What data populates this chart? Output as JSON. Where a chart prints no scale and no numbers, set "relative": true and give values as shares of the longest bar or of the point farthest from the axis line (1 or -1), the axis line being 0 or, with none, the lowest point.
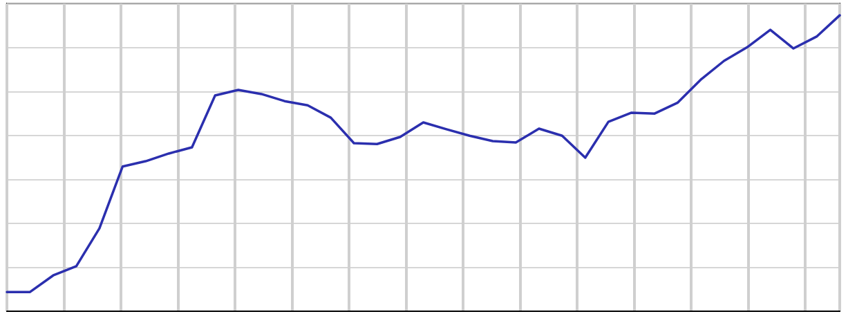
{
  "chart_data": {
    "type": "line",
    "relative": true,
    "grid": true,
    "marker": "none",
    "line_style": "solid",
    "categories": [
      null,
      null,
      null,
      null,
      null,
      null,
      null,
      null,
      null,
      null,
      null,
      null,
      null,
      null,
      null,
      null,
      null,
      null,
      null,
      null,
      null,
      null,
      null,
      null,
      null,
      null,
      null,
      null,
      null,
      null,
      null,
      null,
      null,
      null,
      null,
      null,
      null
    ],
    "series": [
      {
        "color": "#2b2fae",
        "values": [
          0.065,
          0.065,
          0.121,
          0.152,
          0.28,
          0.489,
          0.507,
          0.533,
          0.554,
          0.729,
          0.748,
          0.734,
          0.71,
          0.696,
          0.654,
          0.568,
          0.565,
          0.589,
          0.638,
          0.615,
          0.593,
          0.575,
          0.57,
          0.617,
          0.593,
          0.519,
          0.64,
          0.671,
          0.668,
          0.705,
          0.783,
          0.846,
          0.892,
          0.951,
          0.888,
          0.928,
          1
        ]
      }
    ]
  }
}
